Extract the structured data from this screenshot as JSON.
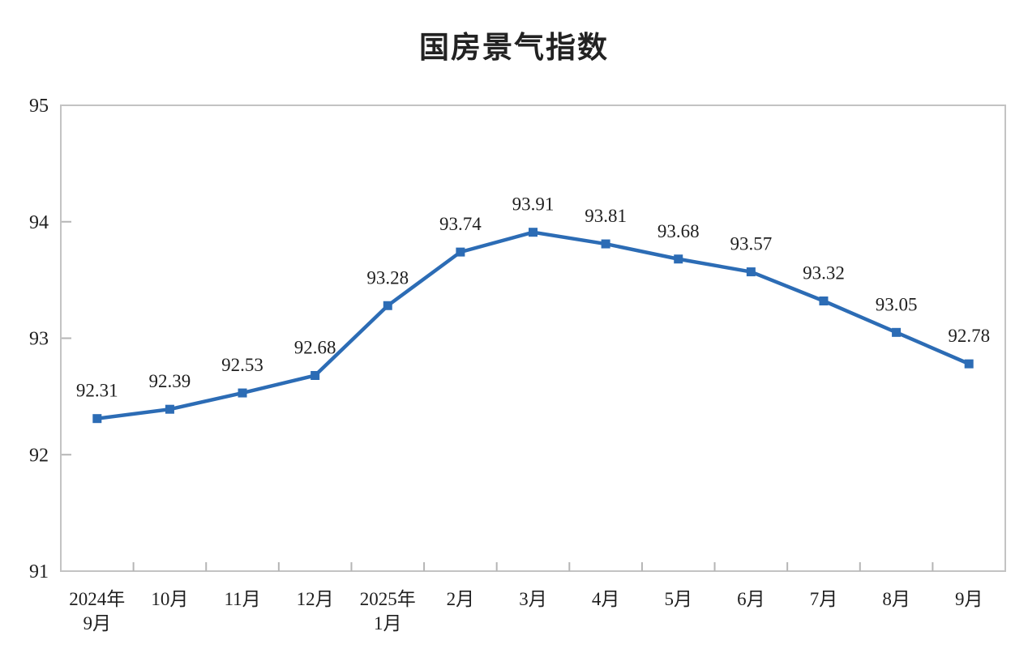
{
  "chart_data": {
    "type": "line",
    "title": "国房景气指数",
    "categories": [
      "2024年\n9月",
      "10月",
      "11月",
      "12月",
      "2025年\n1月",
      "2月",
      "3月",
      "4月",
      "5月",
      "6月",
      "7月",
      "8月",
      "9月"
    ],
    "values": [
      92.31,
      92.39,
      92.53,
      92.68,
      93.28,
      93.74,
      93.91,
      93.81,
      93.68,
      93.57,
      93.32,
      93.05,
      92.78
    ],
    "data_labels": [
      "92.31",
      "92.39",
      "92.53",
      "92.68",
      "93.28",
      "93.74",
      "93.91",
      "93.81",
      "93.68",
      "93.57",
      "93.32",
      "93.05",
      "92.78"
    ],
    "ylim": [
      91,
      95
    ],
    "ytick_step": 1,
    "ytick_labels": [
      "95",
      "94",
      "93",
      "92",
      "91"
    ],
    "grid": false,
    "legend": "none",
    "marker": "square",
    "colors": {
      "line": "#2c6cb5",
      "marker": "#2c6cb5",
      "axis": "#c3c3c3",
      "tick": "#b5b5b5",
      "text": "#1f1f1f",
      "title": "#222222",
      "background": "#ffffff"
    }
  }
}
